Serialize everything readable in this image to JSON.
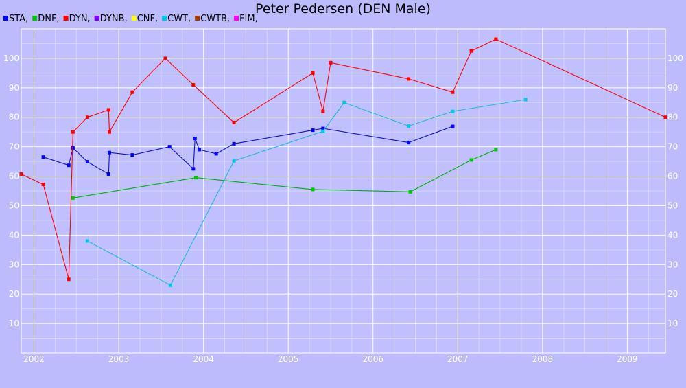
{
  "chart_data": {
    "type": "line",
    "title": "Peter Pedersen (DEN Male)",
    "xlabel": "",
    "ylabel": "",
    "xlim": [
      2001.85,
      2009.45
    ],
    "ylim": [
      0,
      110
    ],
    "x_ticks": [
      2002,
      2003,
      2004,
      2005,
      2006,
      2007,
      2008,
      2009
    ],
    "y_ticks": [
      10,
      20,
      30,
      40,
      50,
      60,
      70,
      80,
      90,
      100
    ],
    "grid": true,
    "legend_position": "top-left",
    "legend": [
      {
        "label": "STA,",
        "color": "#0000ff"
      },
      {
        "label": "DNF,",
        "color": "#00c800"
      },
      {
        "label": "DYN,",
        "color": "#ff0000"
      },
      {
        "label": "DYNB,",
        "color": "#7b00ff"
      },
      {
        "label": "CNF,",
        "color": "#ffff00"
      },
      {
        "label": "CWT,",
        "color": "#00c8e6"
      },
      {
        "label": "CWTB,",
        "color": "#a03c00"
      },
      {
        "label": "FIM,",
        "color": "#ff00ff"
      }
    ],
    "series": [
      {
        "name": "STA",
        "color": "#0000ff",
        "line_color": "#1010c8",
        "points": [
          [
            2002.11,
            66.5
          ],
          [
            2002.41,
            63.7
          ],
          [
            2002.46,
            69.6
          ],
          [
            2002.63,
            64.9
          ],
          [
            2002.88,
            60.7
          ],
          [
            2002.89,
            68.0
          ],
          [
            2003.16,
            67.2
          ],
          [
            2003.6,
            70.0
          ],
          [
            2003.88,
            62.5
          ],
          [
            2003.9,
            72.8
          ],
          [
            2003.95,
            69.0
          ],
          [
            2004.15,
            67.6
          ],
          [
            2004.36,
            71.0
          ],
          [
            2005.29,
            75.6
          ],
          [
            2005.41,
            76.2
          ],
          [
            2006.42,
            71.4
          ],
          [
            2006.94,
            76.9
          ]
        ]
      },
      {
        "name": "DNF",
        "color": "#00c800",
        "line_color": "#00b000",
        "points": [
          [
            2002.46,
            52.6
          ],
          [
            2003.91,
            59.5
          ],
          [
            2005.29,
            55.5
          ],
          [
            2006.44,
            54.7
          ],
          [
            2007.16,
            65.5
          ],
          [
            2007.45,
            69.0
          ]
        ]
      },
      {
        "name": "DYN",
        "color": "#ff0000",
        "line_color": "#ff0000",
        "points": [
          [
            2001.85,
            60.7
          ],
          [
            2002.11,
            57.2
          ],
          [
            2002.41,
            25.0
          ],
          [
            2002.46,
            75.0
          ],
          [
            2002.63,
            80.0
          ],
          [
            2002.88,
            82.5
          ],
          [
            2002.89,
            75.0
          ],
          [
            2003.16,
            88.5
          ],
          [
            2003.55,
            100.0
          ],
          [
            2003.88,
            91.0
          ],
          [
            2004.36,
            78.2
          ],
          [
            2005.29,
            95.0
          ],
          [
            2005.41,
            82.0
          ],
          [
            2005.5,
            98.5
          ],
          [
            2006.42,
            93.0
          ],
          [
            2006.94,
            88.5
          ],
          [
            2007.16,
            102.5
          ],
          [
            2007.45,
            106.5
          ],
          [
            2009.45,
            80.0
          ]
        ]
      },
      {
        "name": "CWT",
        "color": "#00c8e6",
        "line_color": "#20b8d8",
        "points": [
          [
            2002.63,
            38.0
          ],
          [
            2003.61,
            23.0
          ],
          [
            2004.36,
            65.2
          ],
          [
            2005.41,
            75.2
          ],
          [
            2005.66,
            85.0
          ],
          [
            2006.42,
            77.0
          ],
          [
            2006.94,
            82.0
          ],
          [
            2007.8,
            86.0
          ]
        ]
      }
    ]
  }
}
